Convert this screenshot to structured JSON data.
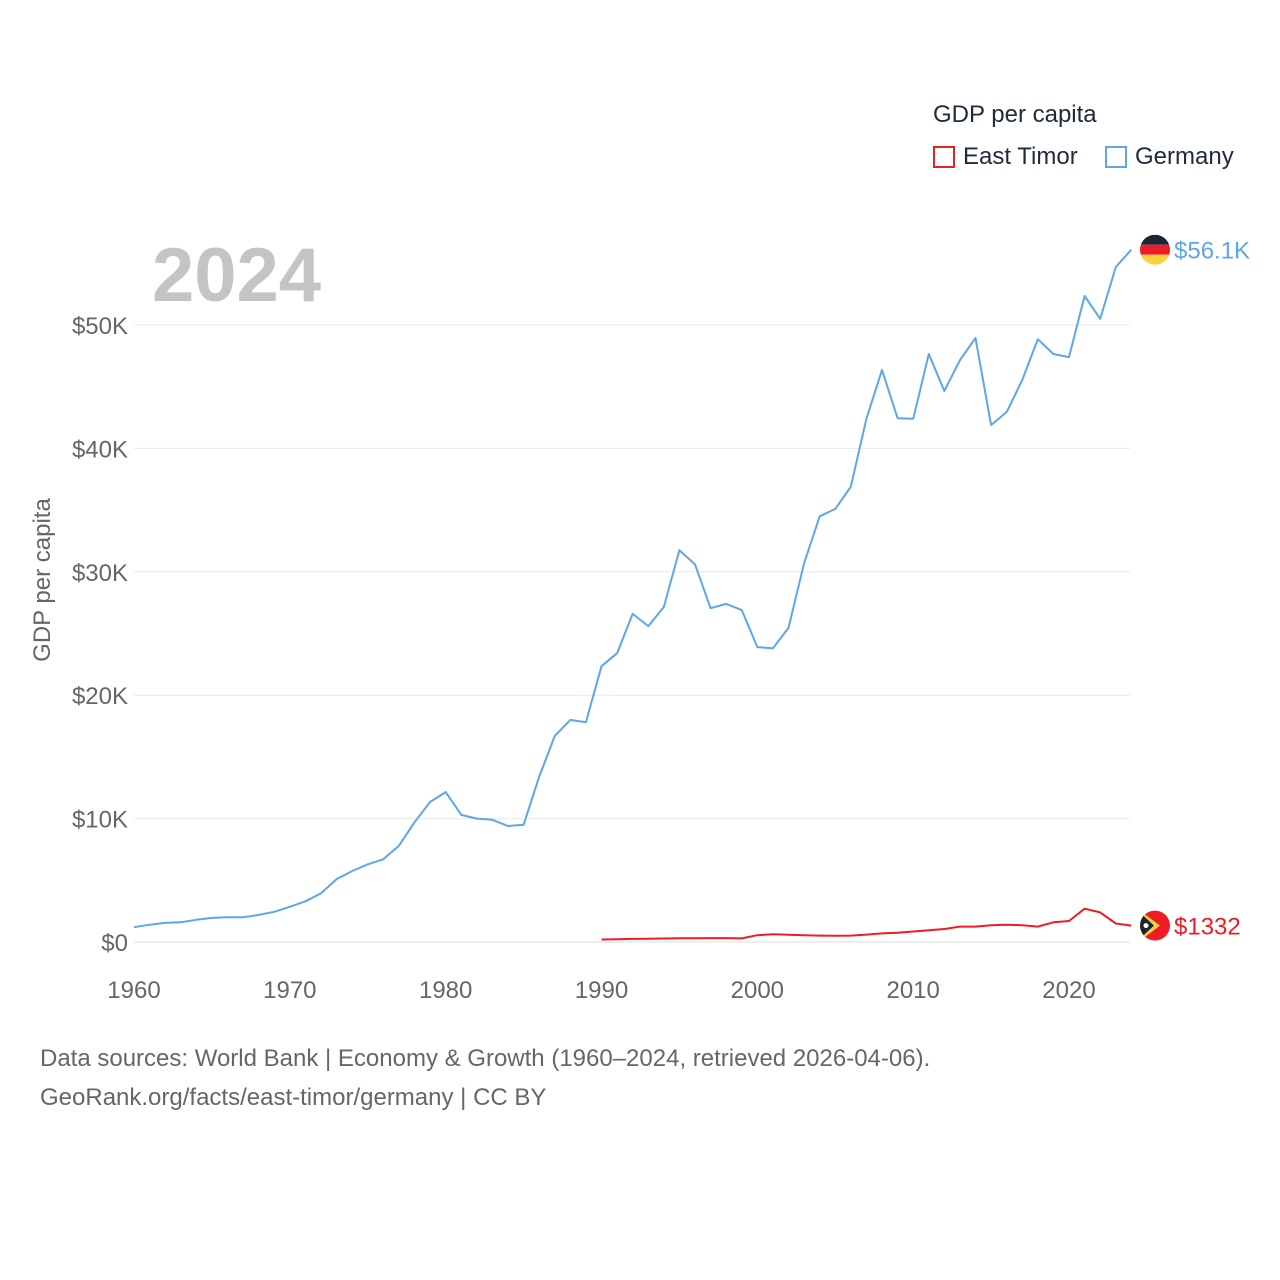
{
  "legend": {
    "title": "GDP per capita",
    "items": [
      {
        "name": "East Timor",
        "color": "#ee1c25"
      },
      {
        "name": "Germany",
        "color": "#5ea6ea"
      }
    ]
  },
  "year_label": "2024",
  "footer": {
    "line1": "Data sources: World Bank | Economy & Growth (1960–2024, retrieved 2026-04-06).",
    "line2": "GeoRank.org/facts/east-timor/germany | CC BY"
  },
  "chart_data": {
    "type": "line",
    "title": "GDP per capita",
    "ylabel": "GDP per capita",
    "xlabel": "",
    "xlim": [
      1960,
      2024
    ],
    "ylim": [
      0,
      56100
    ],
    "xticks": [
      1960,
      1970,
      1980,
      1990,
      2000,
      2010,
      2020
    ],
    "yticks": [
      {
        "v": 0,
        "label": "$0"
      },
      {
        "v": 10000,
        "label": "$10K"
      },
      {
        "v": 20000,
        "label": "$20K"
      },
      {
        "v": 30000,
        "label": "$30K"
      },
      {
        "v": 40000,
        "label": "$40K"
      },
      {
        "v": 50000,
        "label": "$50K"
      }
    ],
    "grid": true,
    "legend_position": "top-right",
    "series": [
      {
        "name": "Germany",
        "color": "#5ea6ea",
        "end_label": "$56.1K",
        "start_year": 1960,
        "values": [
          1200,
          1400,
          1550,
          1600,
          1800,
          1950,
          2000,
          2000,
          2200,
          2450,
          2850,
          3300,
          3950,
          5100,
          5750,
          6300,
          6700,
          7800,
          9700,
          11350,
          12150,
          10300,
          10000,
          9900,
          9400,
          9500,
          13400,
          16700,
          18000,
          17800,
          22350,
          23400,
          26600,
          25600,
          27150,
          31750,
          30600,
          27050,
          27400,
          26900,
          23900,
          23800,
          25450,
          30700,
          34500,
          35100,
          36900,
          42400,
          46350,
          42450,
          42400,
          47650,
          44650,
          47150,
          48950,
          41900,
          42950,
          45550,
          48850,
          47650,
          47400,
          52350,
          50500,
          54700,
          56100
        ]
      },
      {
        "name": "East Timor",
        "color": "#ee1c25",
        "end_label": "$1332",
        "start_year": 1990,
        "values": [
          200,
          220,
          250,
          270,
          280,
          300,
          310,
          320,
          320,
          290,
          550,
          620,
          580,
          550,
          520,
          500,
          520,
          600,
          700,
          750,
          850,
          950,
          1050,
          1250,
          1250,
          1350,
          1400,
          1350,
          1250,
          1600,
          1700,
          2700,
          2400,
          1500,
          1332
        ]
      }
    ]
  }
}
